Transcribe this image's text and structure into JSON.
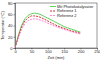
{
  "chart_data": {
    "type": "line",
    "x_label": "Zeit (min)",
    "y_label": "Temperatur (°C)",
    "x": [
      0,
      10,
      20,
      30,
      40,
      50,
      60,
      70,
      80,
      90,
      100,
      110,
      120,
      130,
      140,
      150,
      160,
      170,
      180,
      190,
      200
    ],
    "series": [
      {
        "name": "Mit Photokatalysator",
        "color": "#33cc33",
        "line_style": "solid",
        "values": [
          0,
          22,
          40,
          52,
          58,
          61,
          62,
          61,
          59,
          56,
          53,
          50,
          47,
          44,
          41,
          38,
          36,
          34,
          32,
          30,
          28
        ]
      },
      {
        "name": "Referenz 1",
        "color": "#cc0000",
        "line_style": "dashed",
        "values": [
          0,
          20,
          37,
          48,
          54,
          57,
          57,
          56,
          54,
          51,
          48,
          45,
          42,
          39,
          37,
          35,
          33,
          31,
          29,
          28,
          26
        ]
      },
      {
        "name": "Referenz 2",
        "color": "#ff66cc",
        "line_style": "dashed",
        "values": [
          0,
          18,
          33,
          43,
          49,
          51,
          52,
          51,
          49,
          47,
          44,
          42,
          39,
          37,
          35,
          33,
          31,
          29,
          28,
          26,
          25
        ]
      }
    ],
    "xlim": [
      0,
      250
    ],
    "xticks": [
      0,
      50,
      100,
      150,
      200,
      250
    ],
    "ylim": [
      0,
      80
    ],
    "yticks": [
      0,
      20,
      40,
      60,
      80
    ],
    "grid": false,
    "legend": "upper right"
  }
}
